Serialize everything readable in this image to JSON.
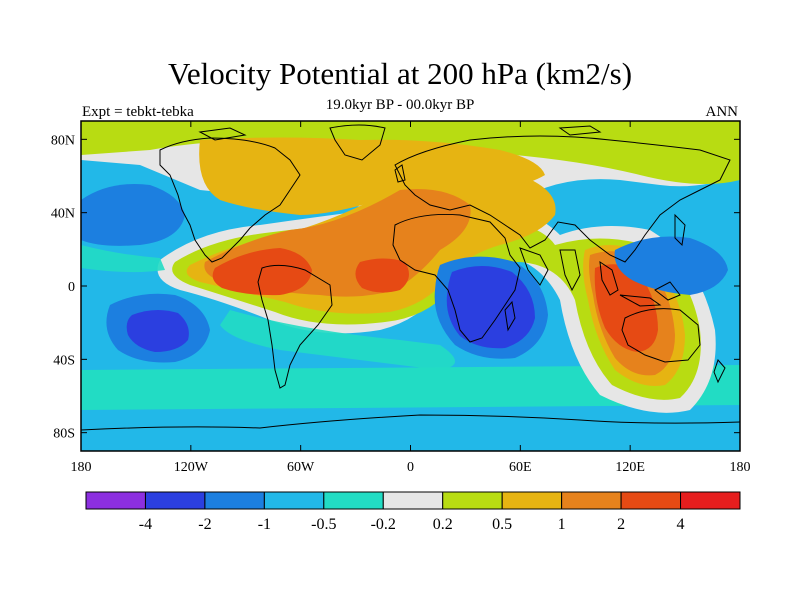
{
  "title": "Velocity Potential at 200 hPa (km2/s)",
  "subtitle": "19.0kyr BP - 00.0kyr BP",
  "left_label": "Expt = tebkt-tebka",
  "right_label": "ANN",
  "chart_data": {
    "type": "heatmap",
    "variable": "Velocity Potential at 200 hPa",
    "units": "km2/s",
    "x_ticks": [
      {
        "value": -180,
        "label": "180"
      },
      {
        "value": -120,
        "label": "120W"
      },
      {
        "value": -60,
        "label": "60W"
      },
      {
        "value": 0,
        "label": "0"
      },
      {
        "value": 60,
        "label": "60E"
      },
      {
        "value": 120,
        "label": "120E"
      },
      {
        "value": 180,
        "label": "180"
      }
    ],
    "y_ticks": [
      {
        "value": 80,
        "label": "80N"
      },
      {
        "value": 40,
        "label": "40N"
      },
      {
        "value": 0,
        "label": "0"
      },
      {
        "value": -40,
        "label": "40S"
      },
      {
        "value": -80,
        "label": "80S"
      }
    ],
    "xlim": [
      -180,
      180
    ],
    "ylim": [
      -90,
      90
    ],
    "colorbar": {
      "levels": [
        "-4",
        "-2",
        "-1",
        "-0.5",
        "-0.2",
        "0.2",
        "0.5",
        "1",
        "2",
        "4"
      ],
      "colors": [
        "#8c2fe0",
        "#2b3fe0",
        "#1c7fe0",
        "#22b8e8",
        "#22dcc4",
        "#e6e6e6",
        "#b8dc12",
        "#e6b412",
        "#e6821c",
        "#e64a14",
        "#e61e1e"
      ]
    },
    "features": [
      {
        "name": "Eastern Indian Ocean / Maritime Continent positive center",
        "lon": 105,
        "lat": -5,
        "level": 9
      },
      {
        "name": "Central America positive center",
        "lon": -95,
        "lat": 5,
        "level": 9
      },
      {
        "name": "Equatorial Atlantic positive center",
        "lon": -10,
        "lat": 5,
        "level": 9
      },
      {
        "name": "Western Indian Ocean negative center",
        "lon": 55,
        "lat": -10,
        "level": 1
      },
      {
        "name": "South Pacific negative center",
        "lon": -135,
        "lat": -20,
        "level": 1
      },
      {
        "name": "North Pacific negative center",
        "lon": -155,
        "lat": 45,
        "level": 2
      },
      {
        "name": "Western North Pacific negative center",
        "lon": 145,
        "lat": 15,
        "level": 2
      }
    ]
  }
}
